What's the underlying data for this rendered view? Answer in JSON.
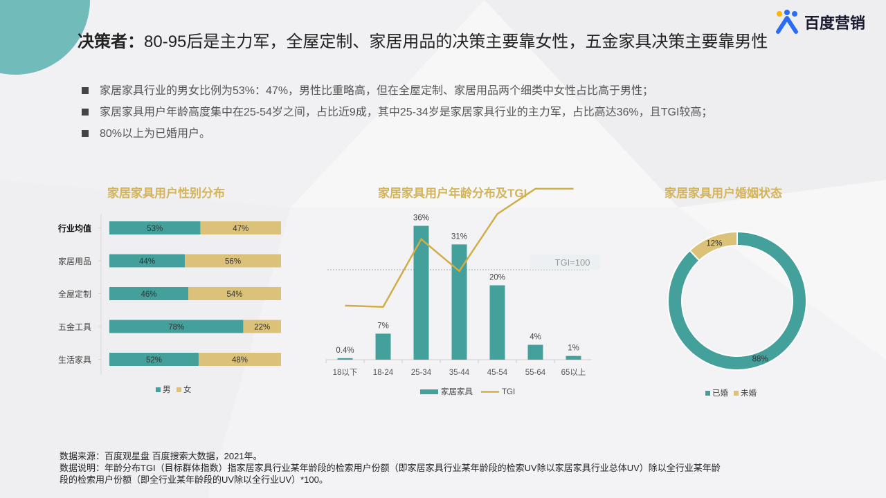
{
  "header": {
    "title_bold": "决策者：",
    "title_rest": "80-95后是主力军，全屋定制、家居用品的决策主要靠女性，五金家具决策主要靠男性",
    "logo_text": "百度营销",
    "logo_icon": "baidu-marketing-logo-icon"
  },
  "bullets": [
    "家居家具行业的男女比例为53%：47%，男性比重略高，但在全屋定制、家居用品两个细类中女性占比高于男性；",
    "家居家具用户年龄高度集中在25-54岁之间，占比近9成，其中25-34岁是家居家具行业的主力军，占比高达36%，且TGI较高；",
    "80%以上为已婚用户。"
  ],
  "colors": {
    "male": "#43a09b",
    "female": "#dcc278",
    "title_accent": "#d4b45a",
    "tgi_line": "#cfae45"
  },
  "chart_data": [
    {
      "type": "bar",
      "orientation": "horizontal-stacked-100",
      "title": "家居家具用户性别分布",
      "categories": [
        "行业均值",
        "家居用品",
        "全屋定制",
        "五金工具",
        "生活家具"
      ],
      "series": [
        {
          "name": "男",
          "values": [
            53,
            44,
            46,
            78,
            52
          ],
          "labels": [
            "53%",
            "44%",
            "46%",
            "78%",
            "52%"
          ]
        },
        {
          "name": "女",
          "values": [
            47,
            56,
            54,
            22,
            48
          ],
          "labels": [
            "47%",
            "56%",
            "54%",
            "22%",
            "48%"
          ]
        }
      ],
      "legend_position": "bottom"
    },
    {
      "type": "bar",
      "title": "家居家具用户年龄分布及TGI",
      "categories": [
        "18以下",
        "18-24",
        "25-34",
        "35-44",
        "45-54",
        "55-64",
        "65以上"
      ],
      "series": [
        {
          "name": "家居家具",
          "values": [
            0.4,
            7,
            36,
            31,
            20,
            4,
            1
          ],
          "labels": [
            "0.4%",
            "7%",
            "36%",
            "31%",
            "20%",
            "4%",
            "1%"
          ]
        },
        {
          "name": "TGI",
          "type": "line",
          "values": [
            73,
            72,
            123,
            99,
            142,
            161,
            161
          ]
        }
      ],
      "reference_line": {
        "label": "TGI=100",
        "value": 100
      },
      "legend_position": "bottom"
    },
    {
      "type": "pie",
      "variant": "donut",
      "title": "家居家具用户婚姻状态",
      "categories": [
        "已婚",
        "未婚"
      ],
      "values": [
        88,
        12
      ],
      "labels": [
        "88%",
        "12%"
      ],
      "legend_position": "bottom"
    }
  ],
  "footer": {
    "source": "数据来源：百度观星盘 百度搜索大数据，2021年。",
    "note_line1": "数据说明：年龄分布TGI（目标群体指数）指家居家具行业某年龄段的检索用户份额（即家居家具行业某年龄段的检索UV除以家居家具行业总体UV）除以全行业某年龄",
    "note_line2": "段的检索用户份额（即全行业某年龄段的UV除以全行业UV）*100。"
  }
}
